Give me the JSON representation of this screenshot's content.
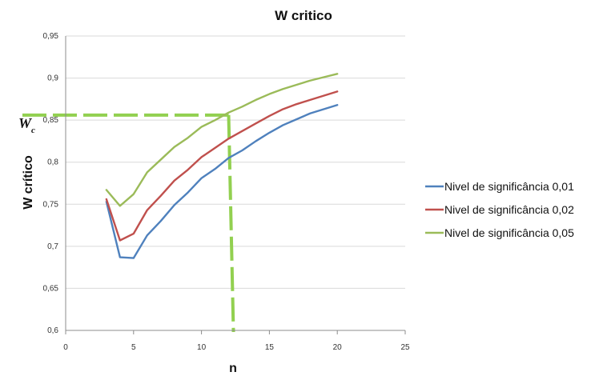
{
  "chart_data": {
    "type": "line",
    "title": "W critico",
    "xlabel": "n",
    "ylabel": "W crítico",
    "xlim": [
      0,
      25
    ],
    "ylim": [
      0.6,
      0.95
    ],
    "xticks": [
      "0",
      "5",
      "10",
      "15",
      "20",
      "25"
    ],
    "yticks": [
      "0,6",
      "0,65",
      "0,7",
      "0,75",
      "0,8",
      "0,85",
      "0,9",
      "0,95"
    ],
    "x": [
      3,
      4,
      5,
      6,
      7,
      8,
      9,
      10,
      11,
      12,
      13,
      14,
      15,
      16,
      17,
      18,
      19,
      20
    ],
    "series": [
      {
        "name": "Nivel de significância 0,01",
        "color": "#4f81bd",
        "values": [
          0.753,
          0.687,
          0.686,
          0.713,
          0.73,
          0.749,
          0.764,
          0.781,
          0.792,
          0.805,
          0.814,
          0.825,
          0.835,
          0.844,
          0.851,
          0.858,
          0.863,
          0.868
        ]
      },
      {
        "name": "Nivel de significância 0,02",
        "color": "#c0504d",
        "values": [
          0.756,
          0.707,
          0.715,
          0.743,
          0.76,
          0.778,
          0.791,
          0.806,
          0.817,
          0.828,
          0.837,
          0.846,
          0.855,
          0.863,
          0.869,
          0.874,
          0.879,
          0.884
        ]
      },
      {
        "name": "Nivel de significância 0,05",
        "color": "#9bbb59",
        "values": [
          0.767,
          0.748,
          0.762,
          0.788,
          0.803,
          0.818,
          0.829,
          0.842,
          0.85,
          0.859,
          0.866,
          0.874,
          0.881,
          0.887,
          0.892,
          0.897,
          0.901,
          0.905
        ]
      }
    ],
    "grid": "horizontal",
    "legend_position": "right",
    "annotation": {
      "label": "W",
      "subscript": "c",
      "marker_x": 12,
      "marker_y": 0.856,
      "line_color": "#92d050",
      "line_style": "dashed"
    }
  }
}
